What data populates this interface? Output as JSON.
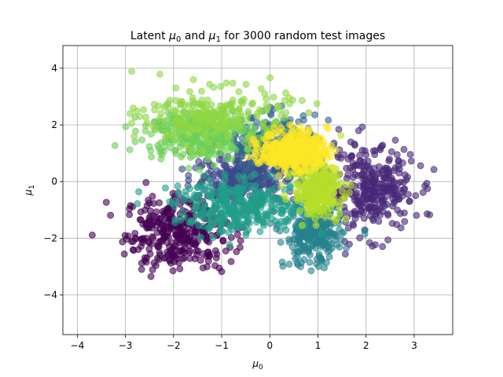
{
  "chart_data": {
    "type": "scatter",
    "title_parts": {
      "prefix": "Latent ",
      "mu0_base": "μ",
      "mu0_sub": "0",
      "connector": " and ",
      "mu1_base": "μ",
      "mu1_sub": "1",
      "suffix": " for 3000 random test images"
    },
    "xlabel": {
      "base": "μ",
      "sub": "0"
    },
    "ylabel": {
      "base": "μ",
      "sub": "1"
    },
    "xlim": [
      -4.3,
      3.8
    ],
    "ylim": [
      -5.4,
      4.8
    ],
    "xticks": [
      -4,
      -3,
      -2,
      -1,
      0,
      1,
      2,
      3
    ],
    "yticks": [
      -4,
      -2,
      0,
      2,
      4
    ],
    "xtick_labels": [
      "−4",
      "−3",
      "−2",
      "−1",
      "0",
      "1",
      "2",
      "3"
    ],
    "ytick_labels": [
      "−4",
      "−2",
      "0",
      "2",
      "4"
    ],
    "grid": true,
    "marker_alpha": 0.6,
    "n_points_total": 3000,
    "clusters": [
      {
        "color": "#440154",
        "center": [
          -1.9,
          -1.8
        ],
        "spread": [
          0.55,
          0.65
        ],
        "n": 340
      },
      {
        "color": "#482878",
        "center": [
          2.1,
          -0.3
        ],
        "spread": [
          0.45,
          0.75
        ],
        "n": 320
      },
      {
        "color": "#3e4989",
        "center": [
          -0.5,
          0.1
        ],
        "spread": [
          0.55,
          0.45
        ],
        "n": 280
      },
      {
        "color": "#31688e",
        "center": [
          0.1,
          1.3
        ],
        "spread": [
          0.45,
          0.5
        ],
        "n": 260
      },
      {
        "color": "#26828e",
        "center": [
          0.9,
          -1.9
        ],
        "spread": [
          0.3,
          0.55
        ],
        "n": 250
      },
      {
        "color": "#1f9e89",
        "center": [
          -0.6,
          -0.9
        ],
        "spread": [
          0.7,
          0.45
        ],
        "n": 330
      },
      {
        "color": "#6ece58",
        "center": [
          -1.5,
          1.7
        ],
        "spread": [
          0.55,
          0.45
        ],
        "n": 330
      },
      {
        "color": "#8fd744",
        "center": [
          -1.1,
          2.3
        ],
        "spread": [
          0.75,
          0.5
        ],
        "n": 230
      },
      {
        "color": "#b5de2b",
        "center": [
          1.0,
          -0.3
        ],
        "spread": [
          0.25,
          0.45
        ],
        "n": 290
      },
      {
        "color": "#fde725",
        "center": [
          0.5,
          1.1
        ],
        "spread": [
          0.35,
          0.35
        ],
        "n": 370
      }
    ]
  }
}
